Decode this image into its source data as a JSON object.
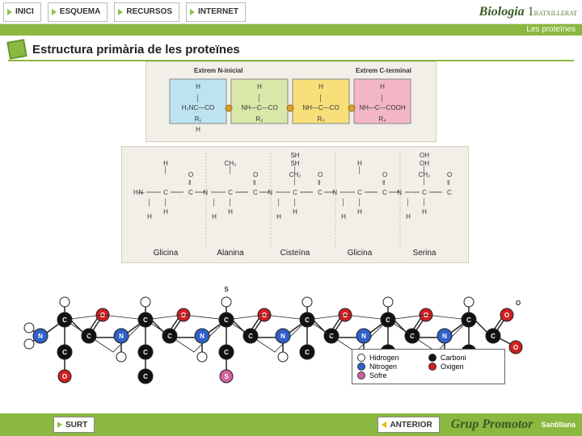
{
  "nav": {
    "inici": "INICI",
    "esquema": "ESQUEMA",
    "recursos": "RECURSOS",
    "internet": "INTERNET"
  },
  "brand": {
    "name": "Biologia",
    "num": "1",
    "level": "BATXILLERAT",
    "topic": "Les proteïnes"
  },
  "title": "Estructura primària de les proteïnes",
  "footer": {
    "surt": "SURT",
    "anterior": "ANTERIOR",
    "group": "Grup Promotor",
    "pub": "Santillana"
  },
  "panel1": {
    "left_label": "Extrem N-inicial",
    "right_label": "Extrem C-terminal",
    "residues": [
      {
        "top": "H",
        "r": "R₁",
        "bottom": "H",
        "fill": "#bde3f0",
        "left_text": "H₂N",
        "seq": "C—CO"
      },
      {
        "top": "H",
        "r": "R₂",
        "bottom": "",
        "fill": "#d9e8a8",
        "seq": "NH—C—CO"
      },
      {
        "top": "H",
        "r": "R₃",
        "bottom": "",
        "fill": "#f7e07a",
        "seq": "NH—C—CO"
      },
      {
        "top": "H",
        "r": "R₄",
        "bottom": "",
        "fill": "#f2b6c6",
        "seq": "NH—C—COOH"
      }
    ]
  },
  "panel2": {
    "amino_acids": [
      {
        "name": "Glicina",
        "side": [
          "H"
        ]
      },
      {
        "name": "Alanina",
        "side": [
          "CH₃"
        ]
      },
      {
        "name": "Cisteïna",
        "side": [
          "CH₂",
          "SH"
        ],
        "top_label": "SH"
      },
      {
        "name": "Glicina",
        "side": [
          "H"
        ]
      },
      {
        "name": "Serina",
        "side": [
          "CH₂",
          "OH"
        ],
        "top_label": "OH"
      }
    ]
  },
  "panel3": {
    "atom_colors": {
      "H": "#ffffff",
      "C": "#111111",
      "N": "#3060c8",
      "O": "#d02020",
      "S": "#d060a0"
    },
    "chain_n": 6
  },
  "legend": [
    {
      "label": "Hidrogen",
      "color": "#ffffff"
    },
    {
      "label": "Carboni",
      "color": "#111111"
    },
    {
      "label": "Nitrogen",
      "color": "#3060c8"
    },
    {
      "label": "Oxigen",
      "color": "#d02020"
    },
    {
      "label": "Sofre",
      "color": "#d060a0"
    }
  ]
}
